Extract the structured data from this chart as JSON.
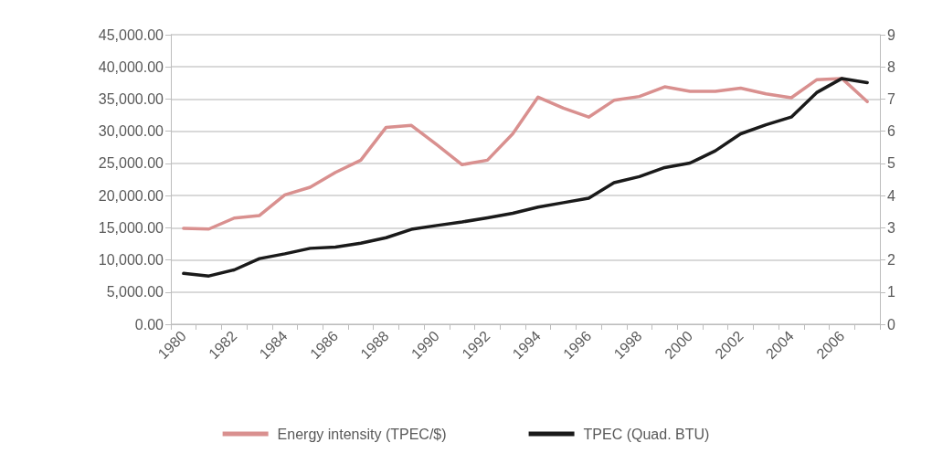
{
  "chart_data": {
    "type": "line",
    "categories": [
      "1980",
      null,
      "1982",
      null,
      "1984",
      null,
      "1986",
      null,
      "1988",
      null,
      "1990",
      null,
      "1992",
      null,
      "1994",
      null,
      "1996",
      null,
      "1998",
      null,
      "2000",
      null,
      "2002",
      null,
      "2004",
      null,
      "2006",
      null
    ],
    "series": [
      {
        "name": "Energy intensity (TPEC/$)",
        "color": "#d9908f",
        "values": [
          14900,
          14800,
          16500,
          16900,
          20100,
          21300,
          23600,
          25500,
          30600,
          30900,
          27900,
          24800,
          25500,
          29600,
          35300,
          33600,
          32200,
          34800,
          35400,
          36900,
          36200,
          36200,
          36700,
          35800,
          35200,
          38000,
          38200,
          34600
        ]
      },
      {
        "name": "TPEC (Quad. BTU)",
        "color": "#1a1a1a",
        "axis": "y2",
        "values": [
          1.58,
          1.5,
          1.69,
          2.04,
          2.19,
          2.36,
          2.4,
          2.52,
          2.69,
          2.95,
          3.07,
          3.18,
          3.31,
          3.45,
          3.64,
          3.78,
          3.92,
          4.4,
          4.59,
          4.87,
          5.01,
          5.39,
          5.92,
          6.2,
          6.44,
          7.2,
          7.64,
          7.51
        ]
      }
    ],
    "ylim": [
      0,
      45000
    ],
    "yticks": [
      {
        "value": 0,
        "label": "0.00"
      },
      {
        "value": 5000,
        "label": "5,000.00"
      },
      {
        "value": 10000,
        "label": "10,000.00"
      },
      {
        "value": 15000,
        "label": "15,000.00"
      },
      {
        "value": 20000,
        "label": "20,000.00"
      },
      {
        "value": 25000,
        "label": "25,000.00"
      },
      {
        "value": 30000,
        "label": "30,000.00"
      },
      {
        "value": 35000,
        "label": "35,000.00"
      },
      {
        "value": 40000,
        "label": "40,000.00"
      },
      {
        "value": 45000,
        "label": "45,000.00"
      }
    ],
    "y2lim": [
      0,
      9
    ],
    "y2ticks": [
      0,
      1,
      2,
      3,
      4,
      5,
      6,
      7,
      8,
      9
    ],
    "grid": "y",
    "legend": "bottom",
    "marker": "none",
    "line_style": "solid"
  }
}
